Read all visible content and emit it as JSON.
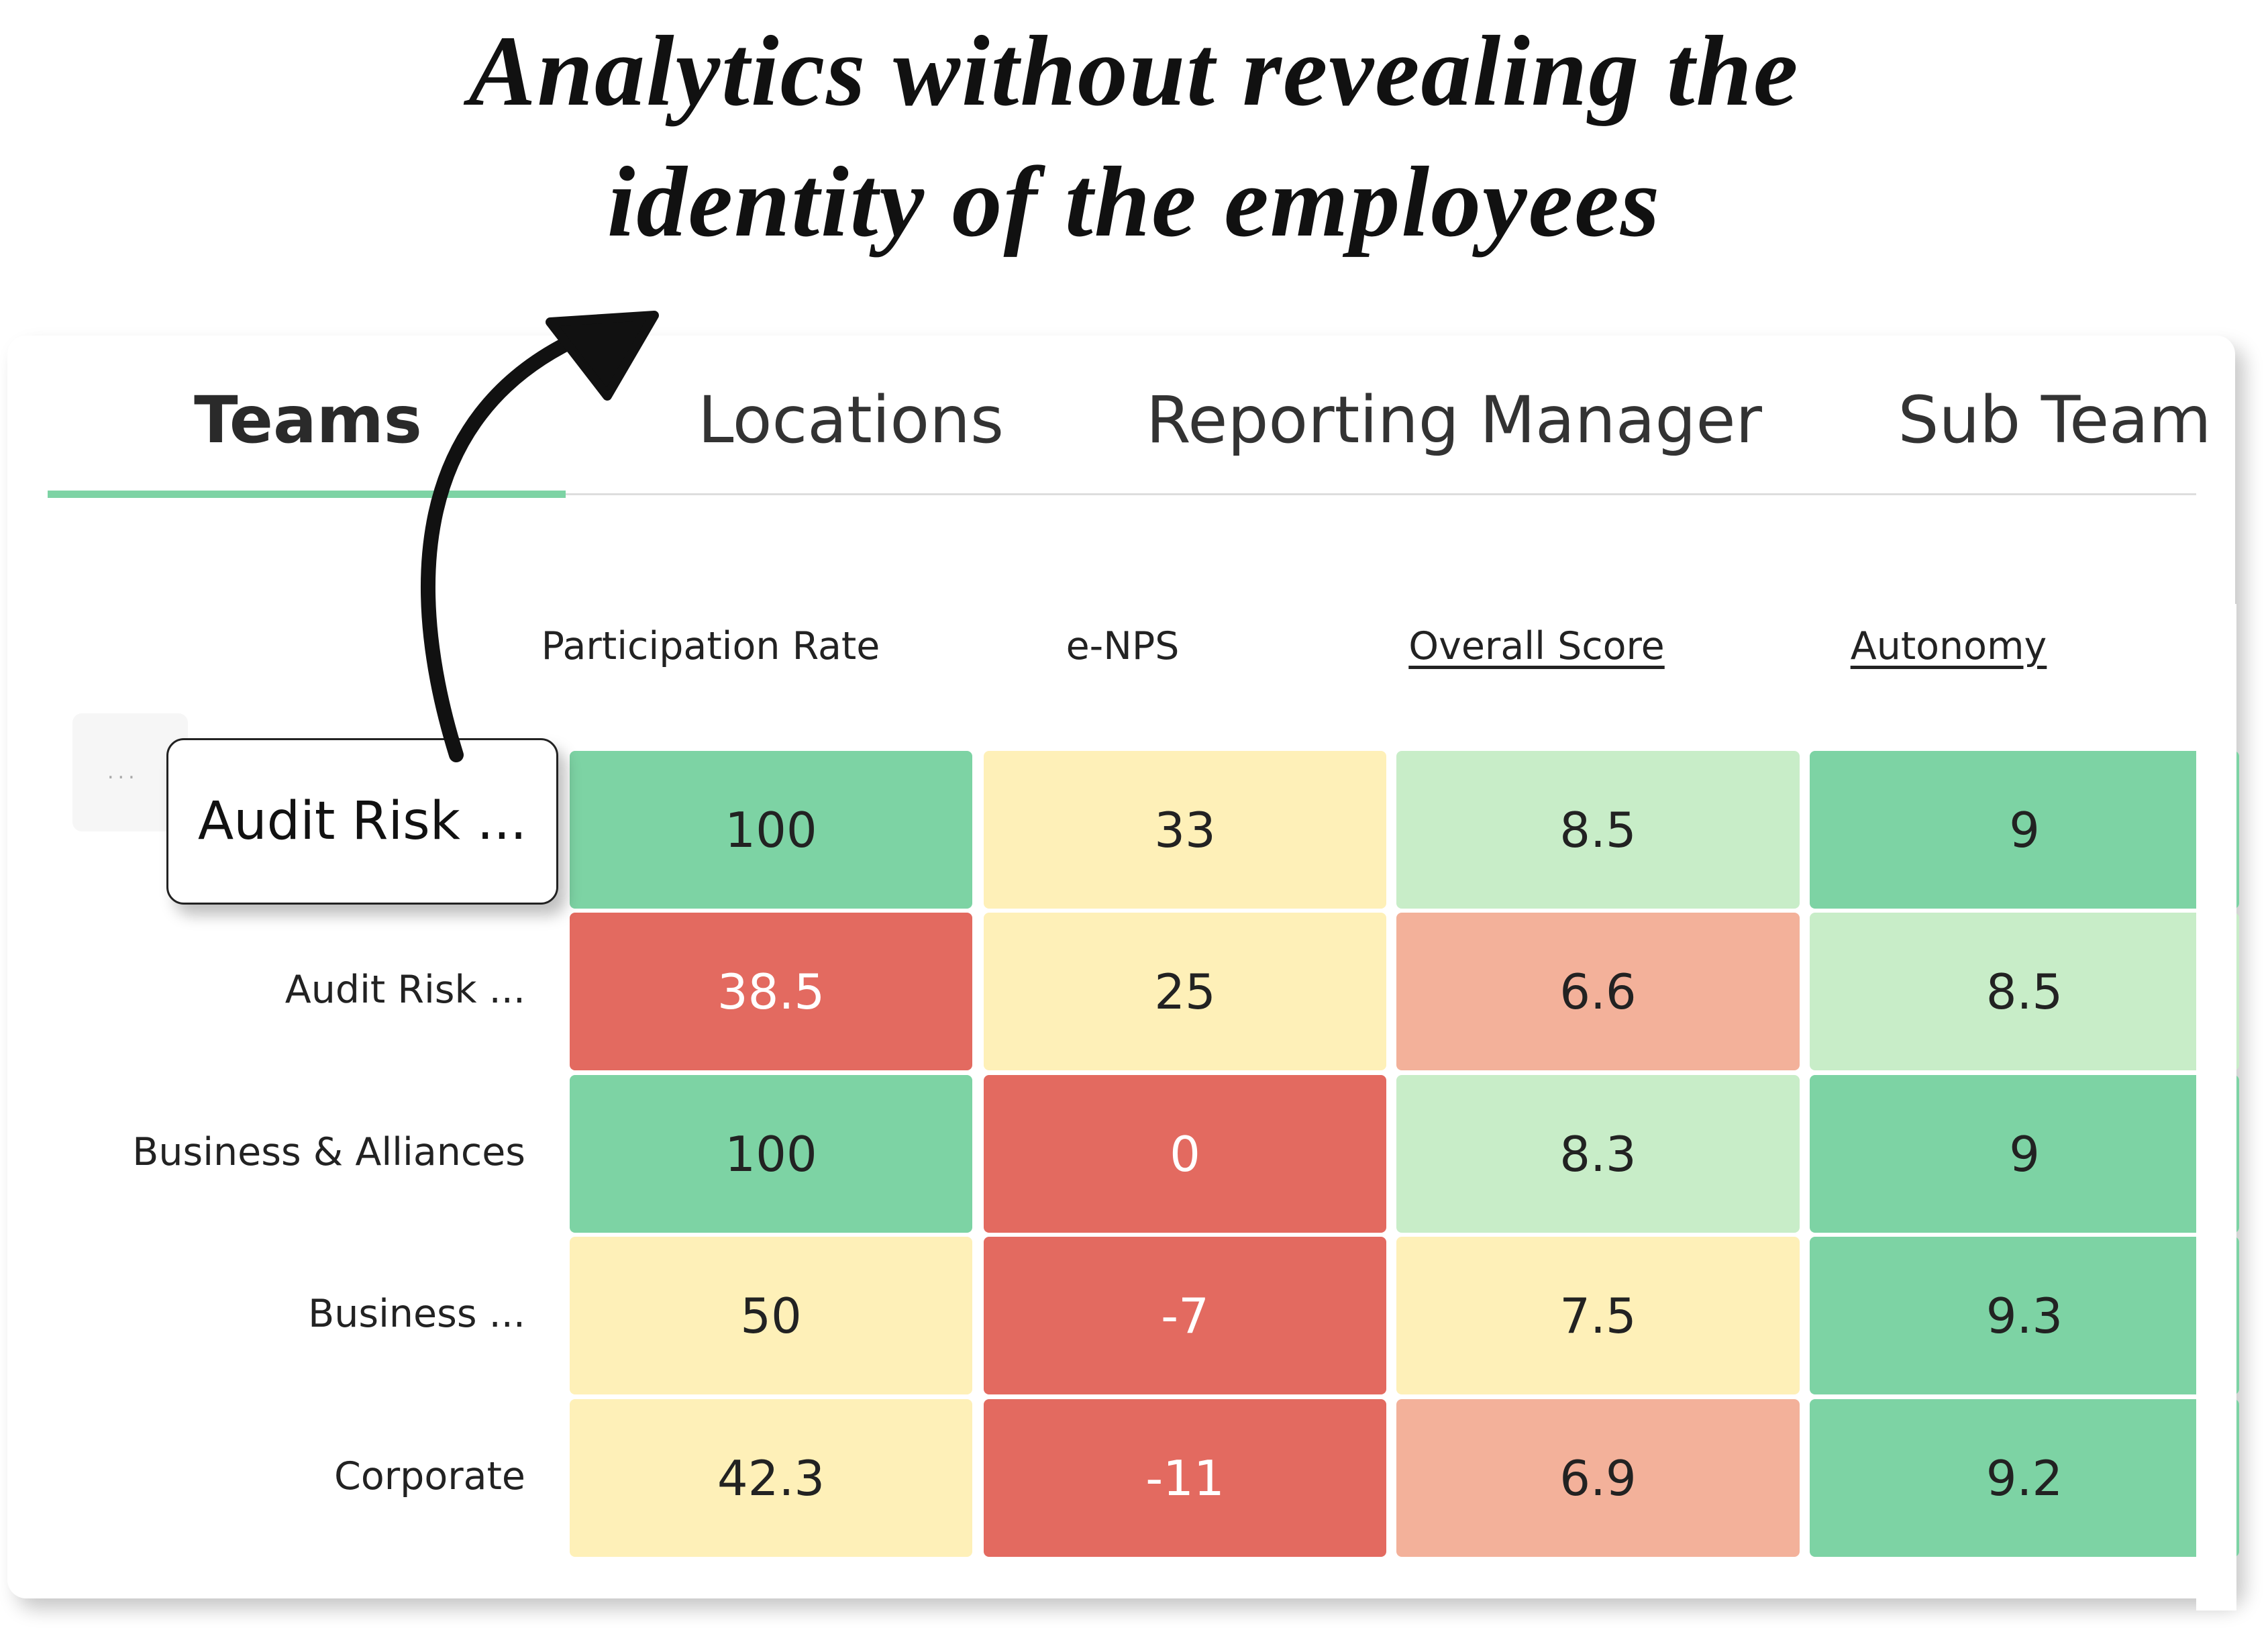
{
  "headline": {
    "line1": "Analytics without revealing the",
    "line2": "identity of the employees"
  },
  "tabs": [
    {
      "label": "Teams",
      "active": true
    },
    {
      "label": "Locations",
      "active": false
    },
    {
      "label": "Reporting Manager",
      "active": false
    },
    {
      "label": "Sub Team",
      "active": false
    }
  ],
  "table": {
    "columns": [
      "Participation Rate",
      "e-NPS",
      "Overall Score",
      "Autonomy"
    ],
    "rows": [
      {
        "label": "Audit Risk ...",
        "values": [
          "100",
          "33",
          "8.5",
          "9"
        ]
      },
      {
        "label": "Audit Risk ...",
        "values": [
          "38.5",
          "25",
          "6.6",
          "8.5"
        ]
      },
      {
        "label": "Business & Alliances",
        "values": [
          "100",
          "0",
          "8.3",
          "9"
        ]
      },
      {
        "label": "Business ...",
        "values": [
          "50",
          "-7",
          "7.5",
          "9.3"
        ]
      },
      {
        "label": "Corporate",
        "values": [
          "42.3",
          "-11",
          "6.9",
          "9.2"
        ]
      }
    ],
    "popup_label": "Audit Risk ...",
    "more_button": "..."
  },
  "colors": {
    "green": "#7dd3a4",
    "light_green": "#c8edc8",
    "yellow": "#fef0b8",
    "red": "#e36a60",
    "salmon": "#f3b19a",
    "accent": "#7dd3a4"
  },
  "cell_color_keys": [
    [
      "green",
      "yellow",
      "light_green",
      "green"
    ],
    [
      "red",
      "yellow",
      "salmon",
      "light_green"
    ],
    [
      "green",
      "red",
      "light_green",
      "green"
    ],
    [
      "yellow",
      "red",
      "yellow",
      "green"
    ],
    [
      "yellow",
      "red",
      "salmon",
      "green"
    ]
  ]
}
